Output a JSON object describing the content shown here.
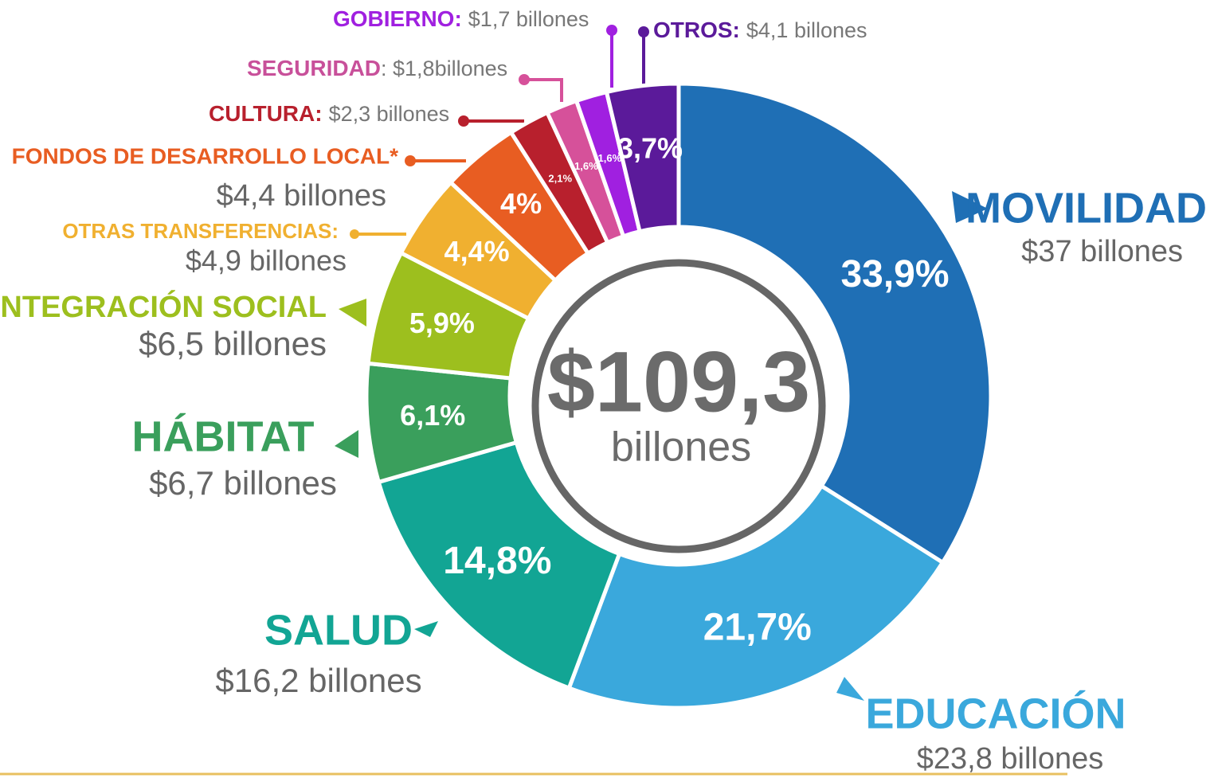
{
  "chart_data": {
    "type": "donut",
    "center_value": "$109,3",
    "center_unit": "billones",
    "categories": [
      "MOVILIDAD",
      "EDUCACIÓN",
      "SALUD",
      "HÁBITAT",
      "INTEGRACIÓN SOCIAL",
      "OTRAS TRANSFERENCIAS:",
      "FONDOS DE DESARROLLO LOCAL*",
      "CULTURA:",
      "SEGURIDAD",
      "GOBIERNO:",
      "OTROS:"
    ],
    "amounts": [
      "$37 billones",
      "$23,8 billones",
      "$16,2 billones",
      "$6,7 billones",
      "$6,5 billones",
      "$4,9 billones",
      "$4,4 billones",
      "$2,3 billones",
      ": $1,8billones",
      "$1,7 billones",
      "$4,1 billones"
    ],
    "values": [
      33.9,
      21.7,
      14.8,
      6.1,
      5.9,
      4.4,
      4,
      2.1,
      1.6,
      1.6,
      3.7
    ],
    "value_labels": [
      "33,9%",
      "21,7%",
      "14,8%",
      "6,1%",
      "5,9%",
      "4,4%",
      "4%",
      "2,1%",
      "1,6%",
      "1,6%",
      "3,7%"
    ],
    "colors": [
      "#1f6fb5",
      "#3aa8dc",
      "#12a594",
      "#3a9f5c",
      "#9dbf1e",
      "#f0b030",
      "#e85d22",
      "#b8202d",
      "#d6519a",
      "#a020e0",
      "#5b1a9a"
    ]
  }
}
